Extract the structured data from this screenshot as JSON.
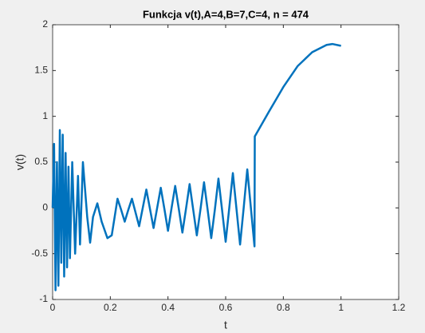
{
  "chart_data": {
    "type": "line",
    "title": "Funkcja v(t),A=4,B=7,C=4, n = 474",
    "x_label": "t",
    "y_label": "v(t)",
    "xlim": [
      0,
      1.2
    ],
    "xticks": [
      0,
      0.2,
      0.4,
      0.6,
      0.8,
      1,
      1.2
    ],
    "ylim": [
      -1,
      2
    ],
    "yticks": [
      -1,
      -0.5,
      0,
      0.5,
      1,
      1.5,
      2
    ],
    "grid": false,
    "series": [
      {
        "name": "v(t)",
        "color": "#0072bd",
        "x": [
          0,
          0.005,
          0.01,
          0.015,
          0.02,
          0.025,
          0.03,
          0.035,
          0.04,
          0.045,
          0.05,
          0.055,
          0.06,
          0.068,
          0.078,
          0.088,
          0.095,
          0.105,
          0.12,
          0.13,
          0.14,
          0.155,
          0.17,
          0.19,
          0.205,
          0.215,
          0.225,
          0.2375,
          0.25,
          0.2625,
          0.275,
          0.2875,
          0.3,
          0.3125,
          0.325,
          0.3375,
          0.35,
          0.3625,
          0.375,
          0.3875,
          0.4,
          0.4125,
          0.425,
          0.4375,
          0.45,
          0.4625,
          0.475,
          0.4875,
          0.5,
          0.5125,
          0.525,
          0.5375,
          0.55,
          0.5625,
          0.575,
          0.5875,
          0.6,
          0.6125,
          0.625,
          0.6375,
          0.65,
          0.6625,
          0.675,
          0.6875,
          0.7,
          0.701,
          0.75,
          0.8,
          0.85,
          0.9,
          0.95,
          0.97,
          1.0
        ],
        "values": [
          0,
          0.7,
          -0.9,
          0.5,
          -0.85,
          0.85,
          -0.6,
          0.8,
          -0.75,
          0.6,
          -0.65,
          0.45,
          -0.55,
          0.5,
          -0.5,
          0.35,
          -0.4,
          0.5,
          -0.1,
          -0.38,
          -0.1,
          0.05,
          -0.15,
          -0.33,
          -0.3,
          -0.1,
          0.1,
          -0.02,
          -0.15,
          -0.02,
          0.1,
          -0.05,
          -0.2,
          0,
          0.2,
          -0.01,
          -0.22,
          0,
          0.22,
          -0.01,
          -0.25,
          0,
          0.24,
          -0.01,
          -0.27,
          -0.01,
          0.26,
          -0.02,
          -0.3,
          -0.02,
          0.28,
          -0.02,
          -0.33,
          -0.02,
          0.32,
          -0.02,
          -0.37,
          0,
          0.38,
          -0.01,
          -0.4,
          0,
          0.42,
          0,
          -0.42,
          0.78,
          1.05,
          1.32,
          1.55,
          1.7,
          1.78,
          1.79,
          1.77
        ]
      }
    ]
  }
}
